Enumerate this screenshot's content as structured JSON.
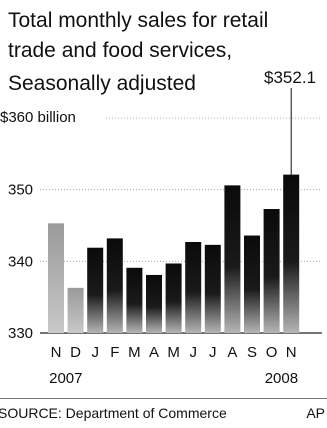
{
  "chart_data": {
    "type": "bar",
    "title": "Total monthly sales for retail trade and food services,",
    "subtitle": "Seasonally adjusted",
    "categories": [
      "N",
      "D",
      "J",
      "F",
      "M",
      "A",
      "M",
      "J",
      "J",
      "A",
      "S",
      "O",
      "N"
    ],
    "values": [
      345.3,
      336.3,
      341.9,
      343.2,
      339.1,
      338.1,
      339.7,
      342.7,
      342.3,
      350.6,
      343.6,
      347.3,
      352.1
    ],
    "year_labels": [
      {
        "label": "2007",
        "index": 0.5
      },
      {
        "label": "2008",
        "index": 11.5
      }
    ],
    "ylim": [
      330,
      360
    ],
    "yticks": [
      {
        "value": 360,
        "label": "$360 billion"
      },
      {
        "value": 350,
        "label": "350"
      },
      {
        "value": 340,
        "label": "340"
      },
      {
        "value": 330,
        "label": "330"
      }
    ],
    "annotation": {
      "label": "$352.1",
      "index": 12
    },
    "series_colors": {
      "2007": "#a9a9a9",
      "2008": "#111111"
    },
    "grid": true,
    "source": "SOURCE: Department of Commerce",
    "credit": "AP"
  }
}
